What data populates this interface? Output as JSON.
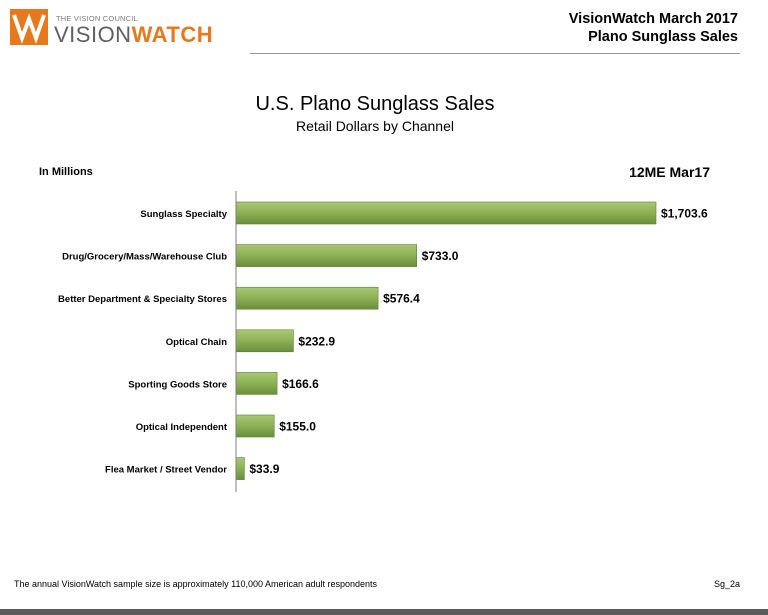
{
  "header": {
    "org_small": "THE VISION COUNCIL",
    "brand_part1": "VISION",
    "brand_part2": "WATCH",
    "report_title": "VisionWatch March 2017",
    "report_subtitle": "Plano Sunglass Sales"
  },
  "colors": {
    "brand_orange": "#e8781e",
    "bar_green": "#8fb356",
    "bar_green_dark": "#5d7f33"
  },
  "chart_data": {
    "type": "bar",
    "orientation": "horizontal",
    "title": "U.S. Plano Sunglass Sales",
    "subtitle": "Retail Dollars by Channel",
    "unit_label": "In Millions",
    "period_label": "12ME Mar17",
    "categories": [
      "Sunglass Specialty",
      "Drug/Grocery/Mass/Warehouse Club",
      "Better Department & Specialty Stores",
      "Optical Chain",
      "Sporting Goods Store",
      "Optical Independent",
      "Flea Market / Street Vendor"
    ],
    "values": [
      1703.6,
      733.0,
      576.4,
      232.9,
      166.6,
      155.0,
      33.9
    ],
    "value_labels": [
      "$1,703.6",
      "$733.0",
      "$576.4",
      "$232.9",
      "$166.6",
      "$155.0",
      "$33.9"
    ],
    "xlim": [
      0,
      1703.6
    ],
    "grid": false,
    "legend": "none"
  },
  "footer": {
    "note": "The annual VisionWatch sample size is approximately 110,000 American adult respondents",
    "code": "Sg_2a"
  }
}
